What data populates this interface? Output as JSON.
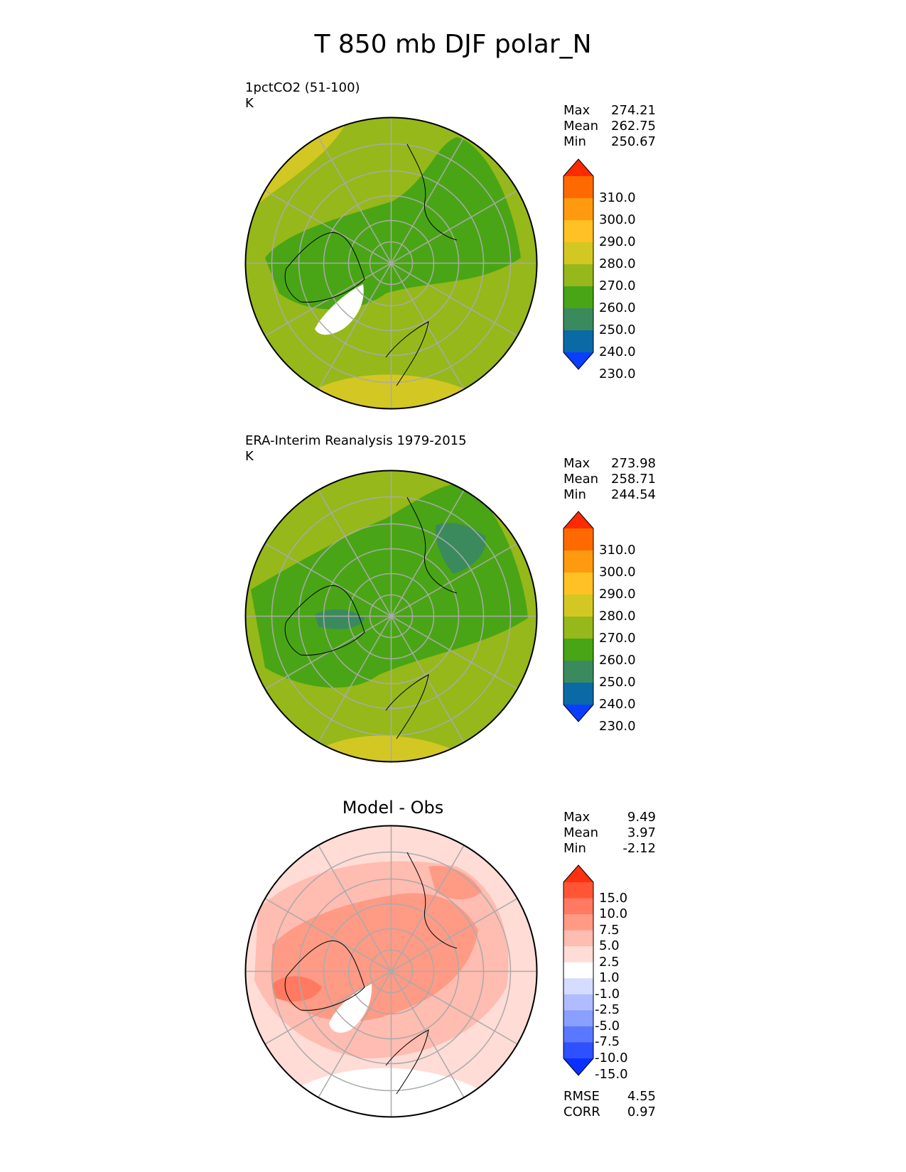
{
  "title": "T 850 mb DJF polar_N",
  "panels": [
    {
      "title": "1pctCO2 (51-100)",
      "units": "K",
      "stats": [
        {
          "label": "Max",
          "value": "274.21"
        },
        {
          "label": "Mean",
          "value": "262.75"
        },
        {
          "label": "Min",
          "value": "250.67"
        }
      ],
      "colorbar": {
        "ticks": [
          "310.0",
          "300.0",
          "290.0",
          "280.0",
          "270.0",
          "260.0",
          "250.0",
          "240.0",
          "230.0"
        ],
        "colors": [
          "#ff2a00",
          "#ff6a00",
          "#ff9a10",
          "#ffc124",
          "#d3c724",
          "#96b81a",
          "#49a515",
          "#3b8a5e",
          "#0a6aa6",
          "#0a3dff"
        ]
      }
    },
    {
      "title": "ERA-Interim Reanalysis 1979-2015",
      "units": "K",
      "stats": [
        {
          "label": "Max",
          "value": "273.98"
        },
        {
          "label": "Mean",
          "value": "258.71"
        },
        {
          "label": "Min",
          "value": "244.54"
        }
      ],
      "colorbar": {
        "ticks": [
          "310.0",
          "300.0",
          "290.0",
          "280.0",
          "270.0",
          "260.0",
          "250.0",
          "240.0",
          "230.0"
        ],
        "colors": [
          "#ff2a00",
          "#ff6a00",
          "#ff9a10",
          "#ffc124",
          "#d3c724",
          "#96b81a",
          "#49a515",
          "#3b8a5e",
          "#0a6aa6",
          "#0a3dff"
        ]
      }
    },
    {
      "title": "Model - Obs",
      "stats": [
        {
          "label": "Max",
          "value": "9.49"
        },
        {
          "label": "Mean",
          "value": "3.97"
        },
        {
          "label": "Min",
          "value": "-2.12"
        }
      ],
      "colorbar": {
        "ticks": [
          "15.0",
          "10.0",
          "7.5",
          "5.0",
          "2.5",
          "1.0",
          "-1.0",
          "-2.5",
          "-5.0",
          "-7.5",
          "-10.0",
          "-15.0"
        ],
        "colors": [
          "#ff3010",
          "#ff5535",
          "#ff7a60",
          "#ff9a85",
          "#ffbcb0",
          "#ffdcd6",
          "#ffffff",
          "#d6dcff",
          "#b0bcff",
          "#8aa0ff",
          "#5a78ff",
          "#2e50ff",
          "#0a30ff"
        ]
      },
      "metrics": [
        {
          "label": "RMSE",
          "value": "4.55"
        },
        {
          "label": "CORR",
          "value": "0.97"
        }
      ]
    }
  ]
}
